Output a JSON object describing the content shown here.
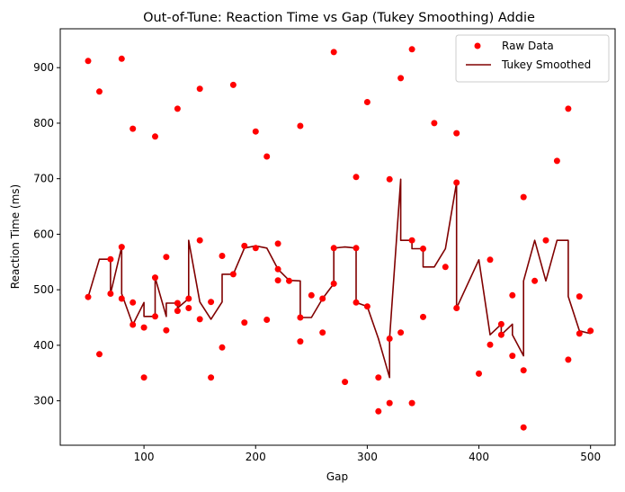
{
  "chart_data": {
    "type": "scatter",
    "title": "Out-of-Tune: Reaction Time vs Gap (Tukey Smoothing) Addie",
    "xlabel": "Gap",
    "ylabel": "Reaction Time (ms)",
    "xlim": [
      25,
      522
    ],
    "ylim": [
      220,
      970
    ],
    "x_ticks": [
      100,
      200,
      300,
      400,
      500
    ],
    "y_ticks": [
      300,
      400,
      500,
      600,
      700,
      800,
      900
    ],
    "grid": false,
    "legend_position": "top-right",
    "colors": {
      "raw": "#ff0000",
      "smoothed": "#800000"
    },
    "series": [
      {
        "name": "Raw Data",
        "kind": "scatter",
        "points": [
          [
            50,
            912
          ],
          [
            50,
            487
          ],
          [
            60,
            857
          ],
          [
            60,
            384
          ],
          [
            70,
            555
          ],
          [
            70,
            493
          ],
          [
            80,
            916
          ],
          [
            80,
            577
          ],
          [
            80,
            484
          ],
          [
            90,
            790
          ],
          [
            90,
            477
          ],
          [
            90,
            437
          ],
          [
            100,
            432
          ],
          [
            100,
            342
          ],
          [
            110,
            776
          ],
          [
            110,
            522
          ],
          [
            110,
            452
          ],
          [
            120,
            559
          ],
          [
            120,
            427
          ],
          [
            130,
            826
          ],
          [
            130,
            476
          ],
          [
            130,
            462
          ],
          [
            140,
            484
          ],
          [
            140,
            467
          ],
          [
            150,
            862
          ],
          [
            150,
            589
          ],
          [
            150,
            447
          ],
          [
            160,
            478
          ],
          [
            160,
            342
          ],
          [
            170,
            561
          ],
          [
            170,
            396
          ],
          [
            180,
            869
          ],
          [
            180,
            528
          ],
          [
            190,
            579
          ],
          [
            190,
            441
          ],
          [
            200,
            785
          ],
          [
            200,
            575
          ],
          [
            210,
            740
          ],
          [
            210,
            446
          ],
          [
            220,
            583
          ],
          [
            220,
            537
          ],
          [
            220,
            517
          ],
          [
            230,
            516
          ],
          [
            240,
            795
          ],
          [
            240,
            450
          ],
          [
            240,
            407
          ],
          [
            250,
            490
          ],
          [
            260,
            484
          ],
          [
            260,
            423
          ],
          [
            270,
            928
          ],
          [
            270,
            575
          ],
          [
            270,
            511
          ],
          [
            280,
            334
          ],
          [
            290,
            703
          ],
          [
            290,
            575
          ],
          [
            290,
            477
          ],
          [
            300,
            838
          ],
          [
            300,
            470
          ],
          [
            310,
            342
          ],
          [
            310,
            281
          ],
          [
            320,
            699
          ],
          [
            320,
            412
          ],
          [
            320,
            296
          ],
          [
            330,
            881
          ],
          [
            330,
            423
          ],
          [
            340,
            933
          ],
          [
            340,
            589
          ],
          [
            340,
            296
          ],
          [
            350,
            574
          ],
          [
            350,
            451
          ],
          [
            360,
            800
          ],
          [
            370,
            541
          ],
          [
            380,
            782
          ],
          [
            380,
            693
          ],
          [
            380,
            467
          ],
          [
            400,
            349
          ],
          [
            410,
            554
          ],
          [
            410,
            401
          ],
          [
            420,
            438
          ],
          [
            420,
            419
          ],
          [
            430,
            490
          ],
          [
            430,
            381
          ],
          [
            440,
            667
          ],
          [
            440,
            355
          ],
          [
            440,
            252
          ],
          [
            450,
            516
          ],
          [
            460,
            589
          ],
          [
            470,
            732
          ],
          [
            480,
            826
          ],
          [
            480,
            374
          ],
          [
            490,
            488
          ],
          [
            490,
            421
          ],
          [
            500,
            426
          ]
        ]
      },
      {
        "name": "Tukey Smoothed",
        "kind": "line",
        "points": [
          [
            50,
            487
          ],
          [
            60,
            555
          ],
          [
            70,
            555
          ],
          [
            70,
            493
          ],
          [
            80,
            577
          ],
          [
            80,
            493
          ],
          [
            90,
            437
          ],
          [
            100,
            477
          ],
          [
            100,
            452
          ],
          [
            110,
            452
          ],
          [
            110,
            522
          ],
          [
            120,
            452
          ],
          [
            120,
            476
          ],
          [
            130,
            476
          ],
          [
            130,
            467
          ],
          [
            140,
            484
          ],
          [
            140,
            589
          ],
          [
            150,
            478
          ],
          [
            160,
            447
          ],
          [
            170,
            478
          ],
          [
            170,
            528
          ],
          [
            180,
            528
          ],
          [
            190,
            575
          ],
          [
            200,
            579
          ],
          [
            210,
            575
          ],
          [
            220,
            537
          ],
          [
            220,
            537
          ],
          [
            230,
            517
          ],
          [
            240,
            516
          ],
          [
            240,
            450
          ],
          [
            250,
            450
          ],
          [
            260,
            484
          ],
          [
            270,
            511
          ],
          [
            270,
            575
          ],
          [
            280,
            577
          ],
          [
            290,
            575
          ],
          [
            290,
            477
          ],
          [
            300,
            470
          ],
          [
            310,
            412
          ],
          [
            320,
            342
          ],
          [
            320,
            412
          ],
          [
            330,
            699
          ],
          [
            330,
            589
          ],
          [
            340,
            589
          ],
          [
            340,
            574
          ],
          [
            350,
            574
          ],
          [
            350,
            541
          ],
          [
            360,
            541
          ],
          [
            370,
            574
          ],
          [
            380,
            693
          ],
          [
            380,
            467
          ],
          [
            400,
            554
          ],
          [
            410,
            419
          ],
          [
            420,
            438
          ],
          [
            420,
            419
          ],
          [
            430,
            438
          ],
          [
            430,
            419
          ],
          [
            440,
            381
          ],
          [
            440,
            516
          ],
          [
            450,
            589
          ],
          [
            460,
            516
          ],
          [
            470,
            589
          ],
          [
            480,
            589
          ],
          [
            480,
            488
          ],
          [
            490,
            426
          ],
          [
            500,
            421
          ]
        ]
      }
    ]
  }
}
